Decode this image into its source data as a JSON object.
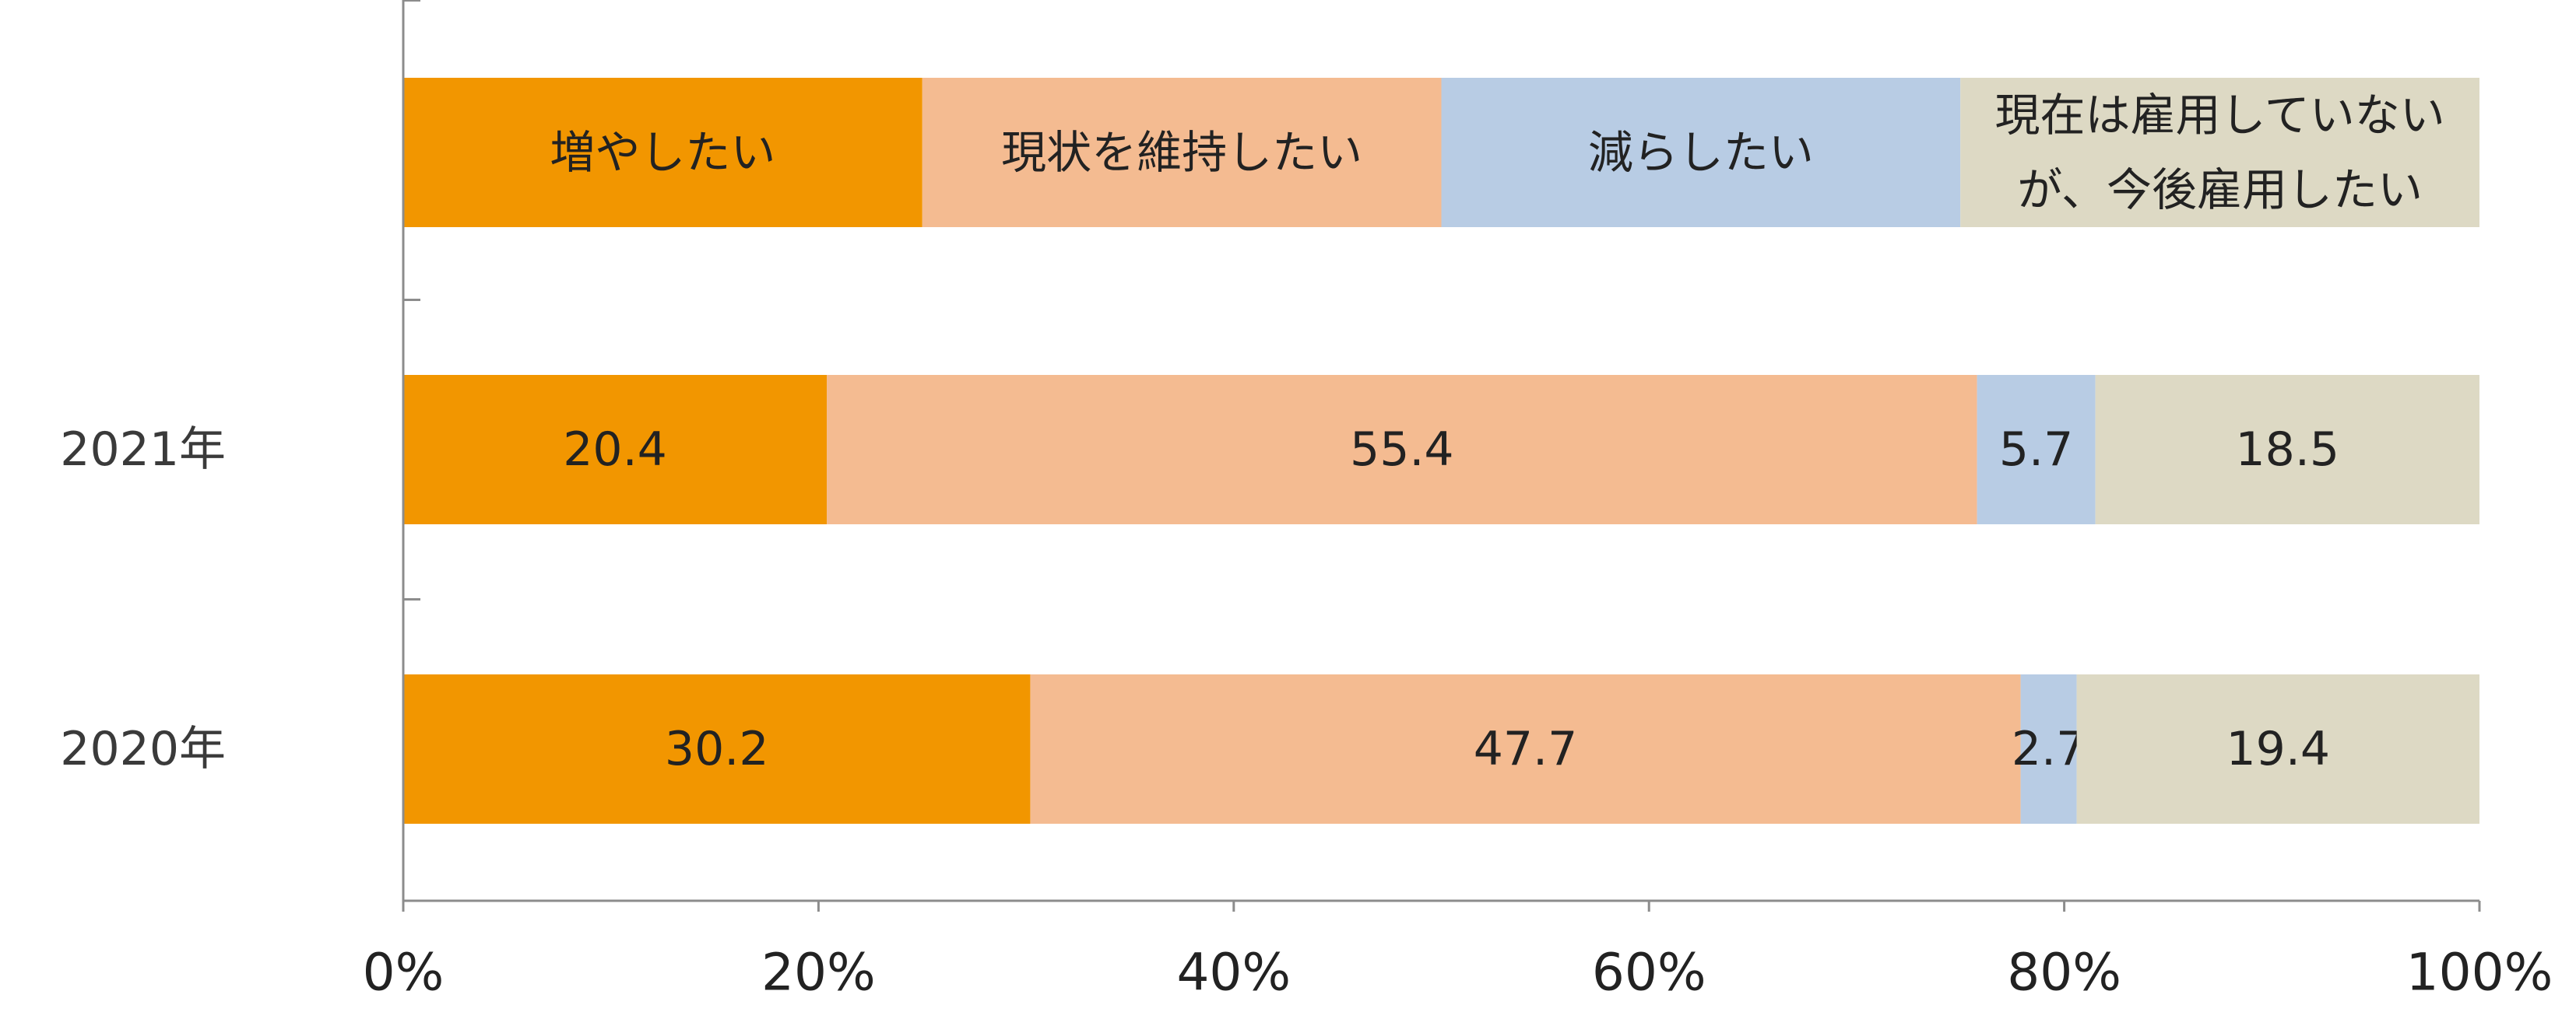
{
  "chart_data": {
    "type": "bar",
    "orientation": "horizontal",
    "stacked": true,
    "percent": true,
    "categories": [
      "2021年",
      "2020年"
    ],
    "series": [
      {
        "name": "増やしたい",
        "values": [
          20.4,
          30.2
        ],
        "color": "#F29600"
      },
      {
        "name": "現状を維持したい",
        "values": [
          55.4,
          47.7
        ],
        "color": "#F4BB91"
      },
      {
        "name": "減らしたい",
        "values": [
          5.7,
          2.7
        ],
        "color": "#B8CCE4"
      },
      {
        "name": "現在は雇用していないが、今後雇用したい",
        "name_lines": [
          "現在は雇用していない",
          "が、今後雇用したい"
        ],
        "values": [
          18.5,
          19.4
        ],
        "color": "#DDD9C4"
      }
    ],
    "xlim": [
      0,
      100
    ],
    "x_ticks": [
      "0%",
      "20%",
      "40%",
      "60%",
      "80%",
      "100%"
    ],
    "legend_placement": "top",
    "grid": false
  }
}
